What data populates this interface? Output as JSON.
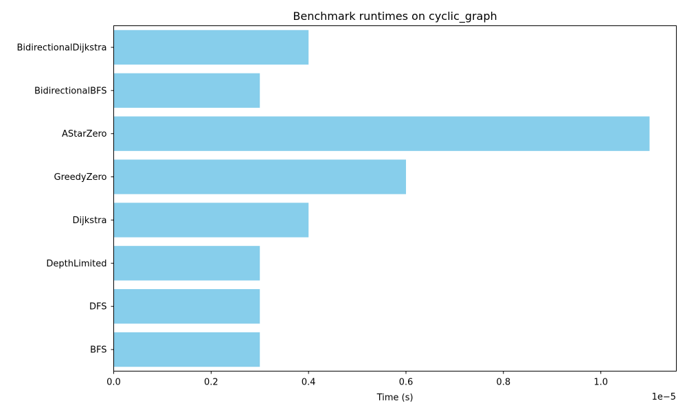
{
  "chart_data": {
    "type": "bar",
    "orientation": "horizontal",
    "title": "Benchmark runtimes on cyclic_graph",
    "xlabel": "Time (s)",
    "ylabel": "",
    "x_offset_label": "1e−5",
    "x_scale_factor": 1e-05,
    "categories": [
      "BidirectionalDijkstra",
      "BidirectionalBFS",
      "AStarZero",
      "GreedyZero",
      "Dijkstra",
      "DepthLimited",
      "DFS",
      "BFS"
    ],
    "values": [
      4e-06,
      3e-06,
      1.1e-05,
      6e-06,
      4e-06,
      3e-06,
      3e-06,
      3e-06
    ],
    "xlim": [
      0,
      1.155e-05
    ],
    "xticks": [
      0,
      2e-06,
      4e-06,
      6e-06,
      8e-06,
      1e-05
    ],
    "xtick_labels": [
      "0.0",
      "0.2",
      "0.4",
      "0.6",
      "0.8",
      "1.0"
    ],
    "bar_color": "#87ceeb",
    "grid": false,
    "legend": null
  }
}
